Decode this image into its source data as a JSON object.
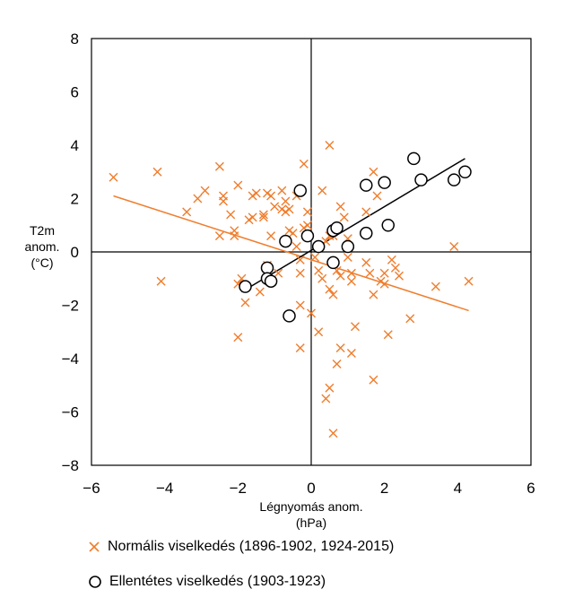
{
  "chart_data": {
    "type": "scatter",
    "xlabel": [
      "Légnyomás anom.",
      "(hPa)"
    ],
    "ylabel": [
      "T2m",
      "anom.",
      "(°C)"
    ],
    "xlim": [
      -6,
      6
    ],
    "ylim": [
      -8,
      8
    ],
    "xticks": [
      "-6",
      "-4",
      "-2",
      "0",
      "2",
      "4",
      "6"
    ],
    "yticks": [
      "-8",
      "-6",
      "-4",
      "-2",
      "0",
      "2",
      "4",
      "6",
      "8"
    ],
    "grid": false,
    "legend_position": "bottom",
    "series": [
      {
        "name": "Normális viselkedés (1896-1902, 1924-2015)",
        "marker": "x",
        "color": "#f07d2d",
        "points": [
          [
            -5.4,
            2.8
          ],
          [
            -4.2,
            3.0
          ],
          [
            -4.1,
            -1.1
          ],
          [
            -3.4,
            1.5
          ],
          [
            -3.1,
            2.0
          ],
          [
            -2.9,
            2.3
          ],
          [
            -2.5,
            3.2
          ],
          [
            -2.5,
            0.6
          ],
          [
            -2.4,
            1.9
          ],
          [
            -2.4,
            2.1
          ],
          [
            -2.2,
            1.4
          ],
          [
            -2.1,
            0.8
          ],
          [
            -2.1,
            0.6
          ],
          [
            -2.0,
            2.5
          ],
          [
            -2.0,
            -3.2
          ],
          [
            -2.0,
            -1.2
          ],
          [
            -1.9,
            -1.0
          ],
          [
            -1.8,
            -1.9
          ],
          [
            -1.7,
            1.2
          ],
          [
            -1.6,
            1.3
          ],
          [
            -1.6,
            2.1
          ],
          [
            -1.5,
            2.2
          ],
          [
            -1.4,
            -1.5
          ],
          [
            -1.3,
            1.4
          ],
          [
            -1.3,
            1.3
          ],
          [
            -1.2,
            2.2
          ],
          [
            -1.2,
            -0.5
          ],
          [
            -1.1,
            0.6
          ],
          [
            -1.1,
            2.1
          ],
          [
            -1.0,
            1.7
          ],
          [
            -0.9,
            -0.8
          ],
          [
            -0.8,
            2.3
          ],
          [
            -0.8,
            1.6
          ],
          [
            -0.7,
            1.9
          ],
          [
            -0.7,
            1.5
          ],
          [
            -0.6,
            1.6
          ],
          [
            -0.6,
            0.8
          ],
          [
            -0.5,
            0.7
          ],
          [
            -0.4,
            2.1
          ],
          [
            -0.4,
            0.2
          ],
          [
            -0.3,
            -0.3
          ],
          [
            -0.3,
            -0.8
          ],
          [
            -0.3,
            -3.6
          ],
          [
            -0.3,
            -2.0
          ],
          [
            -0.2,
            3.3
          ],
          [
            -0.2,
            0.9
          ],
          [
            -0.1,
            1.0
          ],
          [
            -0.1,
            1.5
          ],
          [
            0.0,
            -2.3
          ],
          [
            0.1,
            -0.2
          ],
          [
            0.2,
            -0.7
          ],
          [
            0.2,
            -3.0
          ],
          [
            0.3,
            -1.0
          ],
          [
            0.3,
            2.3
          ],
          [
            0.4,
            -5.5
          ],
          [
            0.4,
            0.4
          ],
          [
            0.5,
            4.0
          ],
          [
            0.5,
            0.6
          ],
          [
            0.5,
            -1.4
          ],
          [
            0.5,
            -5.1
          ],
          [
            0.6,
            -6.8
          ],
          [
            0.6,
            -1.6
          ],
          [
            0.6,
            0.6
          ],
          [
            0.7,
            -4.2
          ],
          [
            0.7,
            -0.7
          ],
          [
            0.8,
            1.7
          ],
          [
            0.8,
            -3.6
          ],
          [
            0.8,
            -0.9
          ],
          [
            0.9,
            1.3
          ],
          [
            1.0,
            -0.2
          ],
          [
            1.0,
            0.5
          ],
          [
            1.1,
            -0.8
          ],
          [
            1.1,
            -1.1
          ],
          [
            1.1,
            -3.8
          ],
          [
            1.2,
            -2.8
          ],
          [
            1.5,
            -0.4
          ],
          [
            1.5,
            1.5
          ],
          [
            1.6,
            -0.8
          ],
          [
            1.7,
            3.0
          ],
          [
            1.7,
            -1.6
          ],
          [
            1.7,
            -4.8
          ],
          [
            1.8,
            2.1
          ],
          [
            1.9,
            -1.1
          ],
          [
            2.0,
            -1.2
          ],
          [
            2.0,
            -0.8
          ],
          [
            2.1,
            -3.1
          ],
          [
            2.2,
            -0.3
          ],
          [
            2.3,
            -0.6
          ],
          [
            2.4,
            -0.9
          ],
          [
            2.7,
            -2.5
          ],
          [
            3.4,
            -1.3
          ],
          [
            3.9,
            0.2
          ],
          [
            4.3,
            -1.1
          ]
        ]
      },
      {
        "name": "Ellentétes viselkedés (1903-1923)",
        "marker": "circle",
        "color": "#000000",
        "points": [
          [
            -1.8,
            -1.3
          ],
          [
            -1.2,
            -0.6
          ],
          [
            -1.2,
            -1.0
          ],
          [
            -1.1,
            -1.1
          ],
          [
            -0.6,
            -2.4
          ],
          [
            -0.7,
            0.4
          ],
          [
            -0.3,
            2.3
          ],
          [
            -0.1,
            0.6
          ],
          [
            0.2,
            0.2
          ],
          [
            0.6,
            0.8
          ],
          [
            0.7,
            0.9
          ],
          [
            0.6,
            -0.4
          ],
          [
            1.0,
            0.2
          ],
          [
            1.5,
            0.7
          ],
          [
            1.5,
            2.5
          ],
          [
            2.0,
            2.6
          ],
          [
            2.1,
            1.0
          ],
          [
            2.8,
            3.5
          ],
          [
            3.0,
            2.7
          ],
          [
            3.9,
            2.7
          ],
          [
            4.2,
            3.0
          ]
        ]
      }
    ],
    "trendlines": [
      {
        "series": "Normális viselkedés (1896-1902, 1924-2015)",
        "color": "#f07d2d",
        "x": [
          -5.4,
          4.3
        ],
        "y": [
          2.1,
          -2.2
        ]
      },
      {
        "series": "Ellentétes viselkedés (1903-1923)",
        "color": "#000000",
        "x": [
          -1.9,
          4.2
        ],
        "y": [
          -1.5,
          3.5
        ]
      }
    ]
  },
  "legend": {
    "items": [
      {
        "label": "Normális viselkedés (1896-1902, 1924-2015)"
      },
      {
        "label": "Ellentétes viselkedés (1903-1923)"
      }
    ]
  }
}
